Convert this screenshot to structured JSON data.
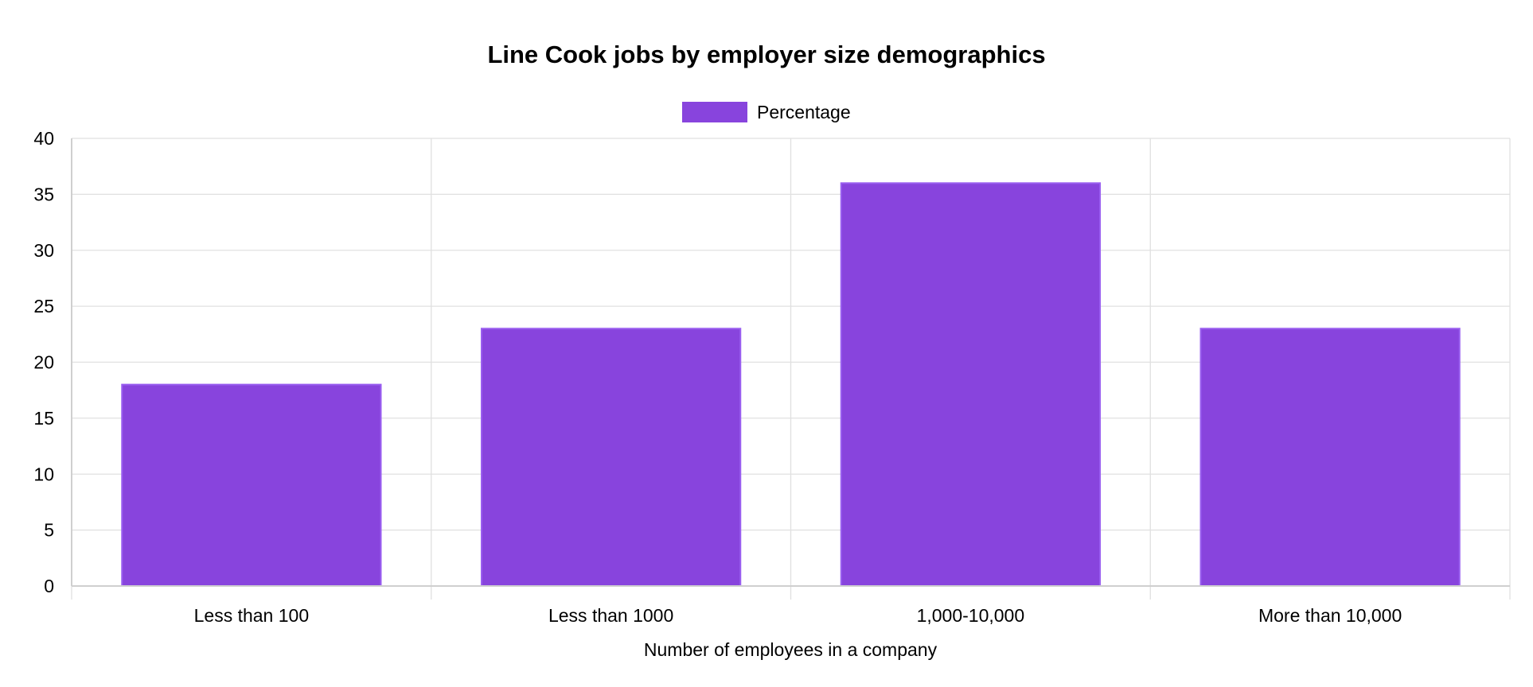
{
  "chart_data": {
    "type": "bar",
    "title": "Line Cook jobs by employer size demographics",
    "xlabel": "Number of employees in a company",
    "ylabel": "",
    "categories": [
      "Less than 100",
      "Less than 1000",
      "1,000-10,000",
      "More than 10,000"
    ],
    "series": [
      {
        "name": "Percentage",
        "values": [
          18,
          23,
          36,
          23
        ],
        "color": "#8844dd"
      }
    ],
    "ylim": [
      0,
      40
    ],
    "yticks": [
      0,
      5,
      10,
      15,
      20,
      25,
      30,
      35,
      40
    ],
    "grid": true,
    "legend_position": "top-center"
  }
}
